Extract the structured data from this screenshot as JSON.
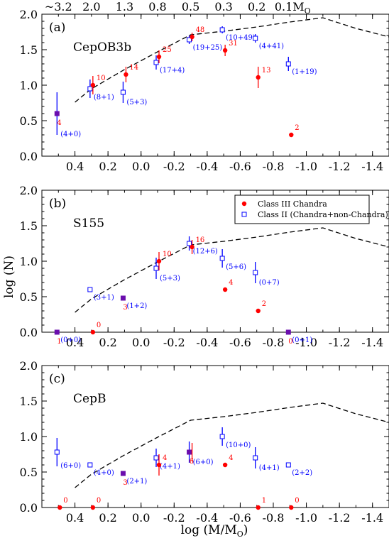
{
  "figure": {
    "ylabel": "log (N)",
    "xlabel_main": "log (M/M",
    "xlabel_sub": "O",
    "xlabel_close": ")",
    "top_ticks": [
      "~3.2",
      "2.0",
      "1.3",
      "0.8",
      "0.5",
      "0.3",
      "0.2",
      "0.1M"
    ],
    "top_ticks_last_sub": "O",
    "colors": {
      "class3": "#ff0000",
      "class2": "#0000ff",
      "overlap": "#6a0dad",
      "curve": "#000000"
    }
  },
  "legend": {
    "class3": "Class III Chandra",
    "class2": "Class II (Chandra+non-Chandra)"
  },
  "chart_data": [
    {
      "type": "scatter",
      "panel": "(a)",
      "name": "CepOB3b",
      "xlim": [
        0.6,
        -1.5
      ],
      "ylim": [
        0,
        2
      ],
      "xticks": [
        "0.4",
        "0.2",
        "0.0",
        "-0.2",
        "-0.4",
        "-0.6",
        "-0.8",
        "-1.0",
        "-1.2",
        "-1.4"
      ],
      "yticks": [
        "0.0",
        "0.5",
        "1.0",
        "1.5",
        "2.0"
      ],
      "curve": [
        [
          0.4,
          0.76
        ],
        [
          0.3,
          0.95
        ],
        [
          0.1,
          1.22
        ],
        [
          -0.1,
          1.47
        ],
        [
          -0.3,
          1.71
        ],
        [
          -0.5,
          1.76
        ],
        [
          -0.7,
          1.82
        ],
        [
          -0.9,
          1.89
        ],
        [
          -1.1,
          1.95
        ],
        [
          -1.3,
          1.8
        ],
        [
          -1.5,
          1.68
        ]
      ],
      "class3": [
        {
          "x": -0.9,
          "y": 0.3,
          "label": "2"
        },
        {
          "x": -0.7,
          "y": 1.11,
          "err": 0.15,
          "label": "13"
        },
        {
          "x": -0.5,
          "y": 1.49,
          "err": 0.08,
          "label": "31"
        },
        {
          "x": -0.3,
          "y": 1.68,
          "err": 0.06,
          "label": "48"
        },
        {
          "x": -0.1,
          "y": 1.4,
          "err": 0.09,
          "label": "25"
        },
        {
          "x": 0.1,
          "y": 1.15,
          "err": 0.11,
          "label": "14"
        },
        {
          "x": 0.3,
          "y": 1.0,
          "err": 0.13,
          "label": "10"
        },
        {
          "x": 0.5,
          "y": 0.6,
          "err": 0.0,
          "label": "4"
        }
      ],
      "class2": [
        {
          "x": 0.5,
          "y": 0.6,
          "err": 0.3,
          "label": "(4+0)"
        },
        {
          "x": 0.3,
          "y": 0.95,
          "err": 0.13,
          "label": "(8+1)"
        },
        {
          "x": 0.1,
          "y": 0.9,
          "err": 0.15,
          "label": "(5+3)"
        },
        {
          "x": -0.1,
          "y": 1.32,
          "err": 0.1,
          "label": "(17+4)"
        },
        {
          "x": -0.3,
          "y": 1.64,
          "err": 0.06,
          "label": "(19+25)"
        },
        {
          "x": -0.5,
          "y": 1.78,
          "err": 0.05,
          "label": "(10+49)"
        },
        {
          "x": -0.7,
          "y": 1.66,
          "err": 0.06,
          "label": "(4+41)"
        },
        {
          "x": -0.9,
          "y": 1.3,
          "err": 0.1,
          "label": "(1+19)"
        }
      ]
    },
    {
      "type": "scatter",
      "panel": "(b)",
      "name": "S155",
      "xlim": [
        0.6,
        -1.5
      ],
      "ylim": [
        0,
        2
      ],
      "xticks": [
        "0.4",
        "0.2",
        "0.0",
        "-0.2",
        "-0.4",
        "-0.6",
        "-0.8",
        "-1.0",
        "-1.2",
        "-1.4"
      ],
      "yticks": [
        "0.0",
        "0.5",
        "1.0",
        "1.5",
        "2.0"
      ],
      "curve": [
        [
          0.4,
          0.28
        ],
        [
          0.3,
          0.47
        ],
        [
          0.1,
          0.74
        ],
        [
          -0.1,
          0.99
        ],
        [
          -0.3,
          1.23
        ],
        [
          -0.5,
          1.28
        ],
        [
          -0.7,
          1.34
        ],
        [
          -0.9,
          1.41
        ],
        [
          -1.1,
          1.47
        ],
        [
          -1.3,
          1.32
        ],
        [
          -1.5,
          1.2
        ]
      ],
      "class3": [
        {
          "x": 0.5,
          "y": 0.0,
          "label": "1"
        },
        {
          "x": 0.3,
          "y": 0.0,
          "label": "0"
        },
        {
          "x": 0.1,
          "y": 0.48,
          "label": "3"
        },
        {
          "x": -0.1,
          "y": 1.0,
          "err": 0.13,
          "label": "10"
        },
        {
          "x": -0.3,
          "y": 1.2,
          "err": 0.1,
          "label": "16"
        },
        {
          "x": -0.5,
          "y": 0.6,
          "label": "4"
        },
        {
          "x": -0.7,
          "y": 0.3,
          "label": "2"
        },
        {
          "x": -0.9,
          "y": 0.0,
          "label": "0"
        }
      ],
      "class2": [
        {
          "x": 0.5,
          "y": 0.0,
          "label": "(0+0)"
        },
        {
          "x": 0.3,
          "y": 0.6,
          "label": "(3+1)"
        },
        {
          "x": 0.1,
          "y": 0.48,
          "label": "(1+2)"
        },
        {
          "x": -0.1,
          "y": 0.9,
          "err": 0.15,
          "label": "(5+3)"
        },
        {
          "x": -0.3,
          "y": 1.25,
          "err": 0.1,
          "label": "(12+6)"
        },
        {
          "x": -0.5,
          "y": 1.04,
          "err": 0.13,
          "label": "(5+6)"
        },
        {
          "x": -0.7,
          "y": 0.84,
          "err": 0.15,
          "label": "(0+7)"
        },
        {
          "x": -0.9,
          "y": 0.0,
          "label": "(0+1)"
        }
      ]
    },
    {
      "type": "scatter",
      "panel": "(c)",
      "name": "CepB",
      "xlim": [
        0.6,
        -1.5
      ],
      "ylim": [
        0,
        2
      ],
      "xticks": [
        "0.4",
        "0.2",
        "0.0",
        "-0.2",
        "-0.4",
        "-0.6",
        "-0.8",
        "-1.0",
        "-1.2",
        "-1.4"
      ],
      "yticks": [
        "0.0",
        "0.5",
        "1.0",
        "1.5",
        "2.0"
      ],
      "curve": [
        [
          0.4,
          0.28
        ],
        [
          0.3,
          0.47
        ],
        [
          0.1,
          0.74
        ],
        [
          -0.1,
          0.99
        ],
        [
          -0.3,
          1.23
        ],
        [
          -0.5,
          1.28
        ],
        [
          -0.7,
          1.34
        ],
        [
          -0.9,
          1.41
        ],
        [
          -1.1,
          1.47
        ],
        [
          -1.3,
          1.32
        ],
        [
          -1.5,
          1.2
        ]
      ],
      "class3": [
        {
          "x": 0.5,
          "y": 0.0,
          "label": "0"
        },
        {
          "x": 0.3,
          "y": 0.0,
          "label": "0"
        },
        {
          "x": 0.1,
          "y": 0.48,
          "label": "3"
        },
        {
          "x": -0.1,
          "y": 0.6,
          "err": 0.15,
          "label": "4"
        },
        {
          "x": -0.3,
          "y": 0.78,
          "err": 0.13,
          "label": "6"
        },
        {
          "x": -0.5,
          "y": 0.6,
          "label": "4"
        },
        {
          "x": -0.7,
          "y": 0.0,
          "label": "1"
        },
        {
          "x": -0.9,
          "y": 0.0,
          "label": "0"
        }
      ],
      "class2": [
        {
          "x": 0.5,
          "y": 0.78,
          "err": 0.2,
          "label": "(6+0)"
        },
        {
          "x": 0.3,
          "y": 0.6,
          "label": "(4+0)"
        },
        {
          "x": 0.1,
          "y": 0.48,
          "label": "(2+1)"
        },
        {
          "x": -0.1,
          "y": 0.7,
          "err": 0.13,
          "label": "(4+1)"
        },
        {
          "x": -0.3,
          "y": 0.78,
          "err": 0.15,
          "label": "(6+0)"
        },
        {
          "x": -0.5,
          "y": 1.0,
          "err": 0.13,
          "label": "(10+0)"
        },
        {
          "x": -0.7,
          "y": 0.7,
          "err": 0.15,
          "label": "(4+1)"
        },
        {
          "x": -0.9,
          "y": 0.6,
          "label": "(2+2)"
        }
      ]
    }
  ]
}
